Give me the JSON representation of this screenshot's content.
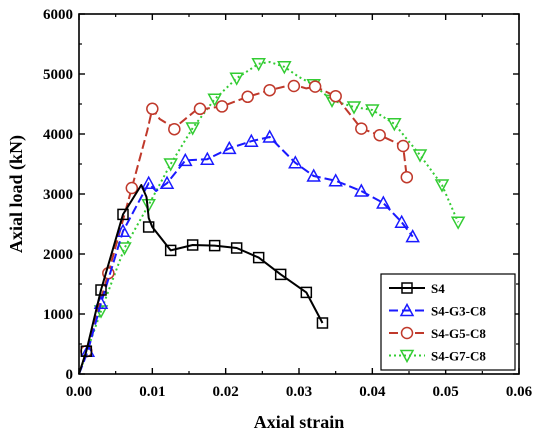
{
  "chart_data": {
    "type": "line",
    "title": "",
    "xlabel": "Axial strain",
    "ylabel": "Axial load (kN)",
    "xlim": [
      0.0,
      0.06
    ],
    "ylim": [
      0,
      6000
    ],
    "x_ticks": [
      "0.00",
      "0.01",
      "0.02",
      "0.03",
      "0.04",
      "0.05",
      "0.06"
    ],
    "y_ticks": [
      "0",
      "1000",
      "2000",
      "3000",
      "4000",
      "5000",
      "6000"
    ],
    "grid": false,
    "legend_position": "bottom-right",
    "series": [
      {
        "name": "S4",
        "color": "#000000",
        "line_style": "solid",
        "marker": "square",
        "x": [
          0.0,
          0.001,
          0.003,
          0.006,
          0.0085,
          0.0092,
          0.0095,
          0.01,
          0.0125,
          0.0155,
          0.0185,
          0.0215,
          0.0245,
          0.0275,
          0.031,
          0.0332
        ],
        "y": [
          0,
          380,
          1400,
          2660,
          3150,
          2950,
          2600,
          2450,
          2060,
          2150,
          2140,
          2100,
          1940,
          1660,
          1360,
          850
        ],
        "markers_x": [
          0.001,
          0.003,
          0.006,
          0.0095,
          0.0125,
          0.0155,
          0.0185,
          0.0215,
          0.0245,
          0.0275,
          0.031,
          0.0332
        ],
        "markers_y": [
          380,
          1400,
          2660,
          2450,
          2060,
          2150,
          2140,
          2100,
          1940,
          1660,
          1360,
          850
        ]
      },
      {
        "name": "S4-G3-C8",
        "color": "#1a1aff",
        "line_style": "dashed",
        "marker": "triangle",
        "x": [
          0.0,
          0.0012,
          0.003,
          0.006,
          0.0095,
          0.0105,
          0.012,
          0.0145,
          0.0175,
          0.0205,
          0.0235,
          0.026,
          0.0272,
          0.0295,
          0.032,
          0.035,
          0.0385,
          0.0415,
          0.044,
          0.0455
        ],
        "y": [
          0,
          380,
          1180,
          2380,
          3180,
          3050,
          3180,
          3560,
          3580,
          3760,
          3880,
          3950,
          3800,
          3520,
          3300,
          3220,
          3050,
          2850,
          2530,
          2290
        ],
        "markers_x": [
          0.0012,
          0.003,
          0.006,
          0.0095,
          0.012,
          0.0145,
          0.0175,
          0.0205,
          0.0235,
          0.026,
          0.0295,
          0.032,
          0.035,
          0.0385,
          0.0415,
          0.044,
          0.0455
        ],
        "markers_y": [
          380,
          1180,
          2380,
          3180,
          3180,
          3560,
          3580,
          3760,
          3880,
          3950,
          3520,
          3300,
          3220,
          3050,
          2850,
          2530,
          2290
        ]
      },
      {
        "name": "S4-G5-C8",
        "color": "#c0392b",
        "line_style": "dashed",
        "marker": "circle",
        "x": [
          0.0,
          0.001,
          0.004,
          0.0072,
          0.0093,
          0.01,
          0.011,
          0.013,
          0.016,
          0.0195,
          0.023,
          0.026,
          0.028,
          0.0293,
          0.031,
          0.0322,
          0.035,
          0.0385,
          0.041,
          0.0442,
          0.0447
        ],
        "y": [
          0,
          380,
          1680,
          3100,
          4050,
          4420,
          4250,
          4100,
          4400,
          4460,
          4620,
          4730,
          4790,
          4820,
          4760,
          4790,
          4630,
          4090,
          3980,
          3800,
          3280
        ],
        "markers_x": [
          0.001,
          0.004,
          0.0072,
          0.01,
          0.013,
          0.0165,
          0.0195,
          0.023,
          0.026,
          0.0293,
          0.0322,
          0.035,
          0.0385,
          0.041,
          0.0442,
          0.0447
        ],
        "markers_y": [
          380,
          1680,
          3100,
          4420,
          4080,
          4420,
          4460,
          4620,
          4730,
          4800,
          4790,
          4630,
          4090,
          3980,
          3800,
          3280
        ],
        "open_markers": true
      },
      {
        "name": "S4-G7-C8",
        "color": "#33cc33",
        "line_style": "dotted",
        "marker": "triangle-down",
        "x": [
          0.0,
          0.003,
          0.0062,
          0.0095,
          0.0125,
          0.0155,
          0.0185,
          0.0215,
          0.0245,
          0.026,
          0.028,
          0.03,
          0.032,
          0.0345,
          0.0375,
          0.04,
          0.043,
          0.0465,
          0.0495,
          0.0517
        ],
        "y": [
          0,
          1050,
          2100,
          2820,
          3500,
          4100,
          4580,
          4930,
          5170,
          5200,
          5120,
          4950,
          4820,
          4560,
          4450,
          4400,
          4170,
          3650,
          3150,
          2530
        ],
        "markers_x": [
          0.003,
          0.0062,
          0.0095,
          0.0125,
          0.0155,
          0.0185,
          0.0215,
          0.0245,
          0.028,
          0.032,
          0.0345,
          0.0375,
          0.04,
          0.043,
          0.0465,
          0.0495,
          0.0517
        ],
        "markers_y": [
          1050,
          2100,
          2820,
          3500,
          4100,
          4580,
          4930,
          5170,
          5120,
          4820,
          4560,
          4450,
          4400,
          4170,
          3650,
          3150,
          2530
        ]
      }
    ]
  }
}
